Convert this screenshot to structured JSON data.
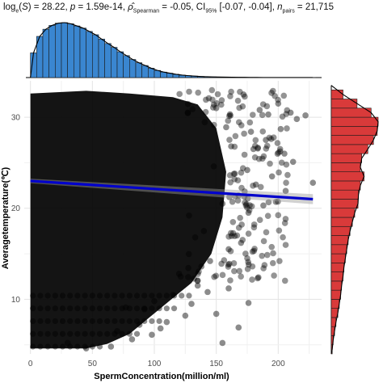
{
  "stats": {
    "bf": "28.22",
    "p": "1.59e-14",
    "rho": "-0.05",
    "ci_low": "-0.07",
    "ci_high": "-0.04",
    "n_pairs": "21,715"
  },
  "chart_data": {
    "type": "scatter",
    "xlabel": "SpermConcentration(million/ml)",
    "ylabel": "Averagetemperature(℃)",
    "xlim": [
      -5,
      235
    ],
    "ylim": [
      4,
      34
    ],
    "x_ticks": [
      0,
      50,
      100,
      150,
      200
    ],
    "y_ticks": [
      10,
      20,
      30
    ],
    "grid": true,
    "regression": {
      "x": [
        0,
        228
      ],
      "y": [
        23.0,
        21.0
      ],
      "color": "#0000cc"
    },
    "scatter_color": "#000000",
    "top_histogram": {
      "color": "#3a86d0",
      "bin_width": 5,
      "bin_starts": [
        0,
        5,
        10,
        15,
        20,
        25,
        30,
        35,
        40,
        45,
        50,
        55,
        60,
        65,
        70,
        75,
        80,
        85,
        90,
        95,
        100,
        105,
        110,
        115,
        120,
        125,
        130,
        135,
        140,
        145,
        150,
        155,
        160,
        165,
        170,
        175,
        180,
        185,
        190,
        195,
        200,
        205,
        210,
        215,
        220,
        225
      ],
      "density": [
        0.45,
        0.75,
        0.88,
        0.95,
        0.99,
        1.0,
        0.98,
        0.94,
        0.9,
        0.84,
        0.78,
        0.7,
        0.62,
        0.55,
        0.47,
        0.4,
        0.33,
        0.27,
        0.22,
        0.17,
        0.13,
        0.1,
        0.08,
        0.06,
        0.045,
        0.035,
        0.027,
        0.02,
        0.015,
        0.012,
        0.01,
        0.008,
        0.006,
        0.005,
        0.004,
        0.003,
        0.003,
        0.002,
        0.002,
        0.002,
        0.001,
        0.001,
        0.001,
        0.001,
        0.001,
        0.001
      ]
    },
    "right_histogram": {
      "color": "#d93a3a",
      "bin_width": 1,
      "bin_starts": [
        4,
        5,
        6,
        7,
        8,
        9,
        10,
        11,
        12,
        13,
        14,
        15,
        16,
        17,
        18,
        19,
        20,
        21,
        22,
        23,
        24,
        25,
        26,
        27,
        28,
        29,
        30,
        31,
        32
      ],
      "density": [
        0.02,
        0.04,
        0.07,
        0.1,
        0.14,
        0.17,
        0.2,
        0.22,
        0.25,
        0.27,
        0.3,
        0.33,
        0.36,
        0.4,
        0.45,
        0.5,
        0.57,
        0.58,
        0.62,
        0.7,
        0.62,
        0.65,
        0.78,
        0.9,
        0.98,
        1.0,
        0.85,
        0.55,
        0.25
      ]
    },
    "scatter_sample_points": [
      [
        210,
        30.5
      ],
      [
        215,
        29.8
      ],
      [
        222,
        30.2
      ],
      [
        228,
        22.8
      ],
      [
        205,
        26
      ],
      [
        200,
        31.5
      ],
      [
        212,
        25.1
      ],
      [
        190,
        27.5
      ],
      [
        185,
        30.8
      ],
      [
        195,
        23.5
      ],
      [
        188,
        20.3
      ],
      [
        176,
        19.5
      ],
      [
        170,
        16.2
      ],
      [
        160,
        15.5
      ],
      [
        180,
        26.5
      ],
      [
        172,
        32.5
      ],
      [
        165,
        23.8
      ],
      [
        158,
        28.9
      ],
      [
        150,
        31
      ],
      [
        145,
        14.2
      ],
      [
        140,
        17.5
      ],
      [
        135,
        11.5
      ],
      [
        130,
        9.5
      ],
      [
        125,
        8.2
      ],
      [
        120,
        12.8
      ],
      [
        115,
        10.5
      ],
      [
        110,
        7.5
      ],
      [
        105,
        6.8
      ],
      [
        100,
        9.8
      ],
      [
        98,
        6.1
      ],
      [
        92,
        8.9
      ],
      [
        88,
        7.2
      ],
      [
        82,
        5.6
      ],
      [
        77,
        9.1
      ],
      [
        70,
        6.5
      ],
      [
        160,
        11.2
      ],
      [
        150,
        8.4
      ],
      [
        143,
        10.8
      ],
      [
        138,
        13.6
      ],
      [
        133,
        16.8
      ],
      [
        128,
        19.2
      ],
      [
        155,
        20.5
      ],
      [
        148,
        24.6
      ],
      [
        162,
        26.8
      ],
      [
        168,
        21.4
      ],
      [
        175,
        24.2
      ],
      [
        182,
        22.6
      ],
      [
        178,
        28.4
      ],
      [
        192,
        30.3
      ],
      [
        202,
        28.7
      ],
      [
        206,
        21.9
      ],
      [
        184,
        12.4
      ],
      [
        176,
        9.6
      ],
      [
        168,
        6.9
      ],
      [
        155,
        5.2
      ],
      [
        65,
        4.8
      ],
      [
        45,
        4.6
      ],
      [
        30,
        5.2
      ]
    ]
  }
}
